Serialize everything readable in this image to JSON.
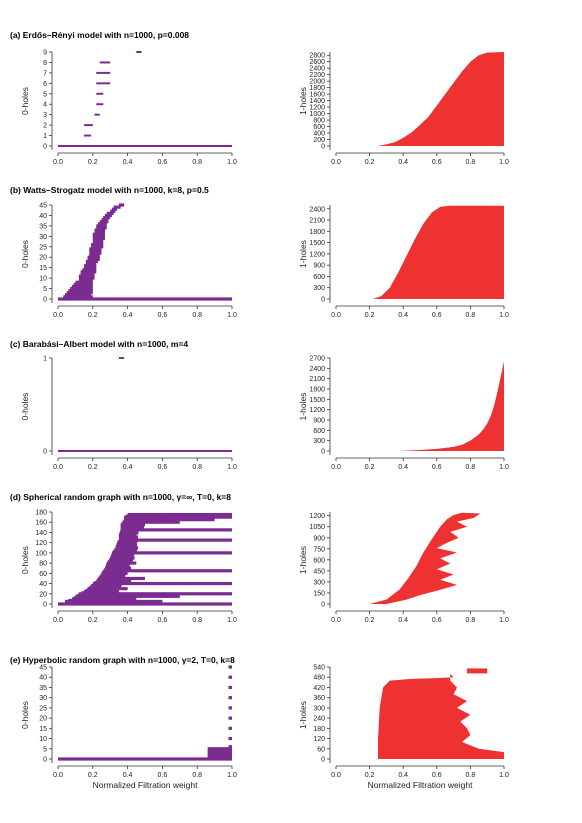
{
  "colors": {
    "zero_holes": "#7b2c91",
    "one_holes": "#ee3232"
  },
  "panels": [
    {
      "label": "(a)",
      "title": "Erdős–Rényi model with n=1000, p=0.008"
    },
    {
      "label": "(b)",
      "title": "Watts–Strogatz model with n=1000, k=8, p=0.5"
    },
    {
      "label": "(c)",
      "title": "Barabási–Albert model with n=1000, m=4"
    },
    {
      "label": "(d)",
      "title": "Spherical random graph with n=1000, γ=∞, T=0, k=8"
    },
    {
      "label": "(e)",
      "title": "Hyperbolic random graph with n=1000, γ=2, T=0, k=8"
    }
  ],
  "chart_data": [
    {
      "panel": "a",
      "type": "bar",
      "ylabel": "0-holes",
      "xlim": [
        0,
        1
      ],
      "ylim": [
        0,
        9
      ],
      "xticks": [
        "0.0",
        "0.2",
        "0.4",
        "0.6",
        "0.8",
        "1.0"
      ],
      "yticks": [
        "0",
        "1",
        "2",
        "3",
        "4",
        "5",
        "6",
        "7",
        "8",
        "9"
      ],
      "bars": [
        [
          0,
          0,
          1
        ],
        [
          1,
          0.15,
          0.19
        ],
        [
          2,
          0.15,
          0.2
        ],
        [
          3,
          0.21,
          0.24
        ],
        [
          4,
          0.22,
          0.26
        ],
        [
          5,
          0.22,
          0.26
        ],
        [
          6,
          0.22,
          0.3
        ],
        [
          7,
          0.22,
          0.3
        ],
        [
          8,
          0.24,
          0.3
        ],
        [
          9,
          0.45,
          0.48
        ]
      ]
    },
    {
      "panel": "a",
      "type": "area",
      "ylabel": "1-holes",
      "xlim": [
        0,
        1
      ],
      "ylim": [
        0,
        2900
      ],
      "xticks": [
        "0.0",
        "0.2",
        "0.4",
        "0.6",
        "0.8",
        "1.0"
      ],
      "yticks": [
        "0",
        "200",
        "400",
        "600",
        "800",
        "1000",
        "1200",
        "1400",
        "1600",
        "1800",
        "2000",
        "2200",
        "2400",
        "2600",
        "2800"
      ],
      "curve": [
        [
          0.25,
          0
        ],
        [
          0.3,
          50
        ],
        [
          0.35,
          120
        ],
        [
          0.4,
          250
        ],
        [
          0.45,
          420
        ],
        [
          0.5,
          650
        ],
        [
          0.55,
          900
        ],
        [
          0.6,
          1250
        ],
        [
          0.65,
          1600
        ],
        [
          0.7,
          1950
        ],
        [
          0.75,
          2300
        ],
        [
          0.8,
          2600
        ],
        [
          0.85,
          2800
        ],
        [
          0.9,
          2880
        ],
        [
          1.0,
          2900
        ]
      ]
    },
    {
      "panel": "b",
      "type": "bar",
      "ylabel": "0-holes",
      "xlim": [
        0,
        1
      ],
      "ylim": [
        0,
        45
      ],
      "xticks": [
        "0.0",
        "0.2",
        "0.4",
        "0.6",
        "0.8",
        "1.0"
      ],
      "yticks": [
        "0",
        "5",
        "10",
        "15",
        "20",
        "25",
        "30",
        "35",
        "40",
        "45"
      ],
      "bars": [
        [
          0,
          0,
          1
        ],
        [
          1,
          0.03,
          0.2
        ],
        [
          2,
          0.04,
          0.19
        ],
        [
          3,
          0.05,
          0.2
        ],
        [
          4,
          0.06,
          0.2
        ],
        [
          5,
          0.07,
          0.2
        ],
        [
          6,
          0.08,
          0.2
        ],
        [
          7,
          0.09,
          0.2
        ],
        [
          8,
          0.1,
          0.2
        ],
        [
          9,
          0.12,
          0.2
        ],
        [
          10,
          0.12,
          0.21
        ],
        [
          11,
          0.12,
          0.21
        ],
        [
          12,
          0.13,
          0.21
        ],
        [
          13,
          0.13,
          0.22
        ],
        [
          14,
          0.14,
          0.22
        ],
        [
          15,
          0.15,
          0.22
        ],
        [
          16,
          0.15,
          0.22
        ],
        [
          17,
          0.16,
          0.22
        ],
        [
          18,
          0.16,
          0.23
        ],
        [
          19,
          0.17,
          0.24
        ],
        [
          20,
          0.17,
          0.24
        ],
        [
          21,
          0.18,
          0.24
        ],
        [
          22,
          0.18,
          0.25
        ],
        [
          23,
          0.18,
          0.25
        ],
        [
          24,
          0.18,
          0.25
        ],
        [
          25,
          0.19,
          0.26
        ],
        [
          26,
          0.19,
          0.26
        ],
        [
          27,
          0.2,
          0.26
        ],
        [
          28,
          0.2,
          0.26
        ],
        [
          29,
          0.2,
          0.27
        ],
        [
          30,
          0.2,
          0.27
        ],
        [
          31,
          0.2,
          0.27
        ],
        [
          32,
          0.21,
          0.27
        ],
        [
          33,
          0.21,
          0.27
        ],
        [
          34,
          0.22,
          0.28
        ],
        [
          35,
          0.22,
          0.28
        ],
        [
          36,
          0.23,
          0.28
        ],
        [
          37,
          0.24,
          0.29
        ],
        [
          38,
          0.25,
          0.29
        ],
        [
          39,
          0.26,
          0.3
        ],
        [
          40,
          0.27,
          0.31
        ],
        [
          41,
          0.28,
          0.32
        ],
        [
          42,
          0.3,
          0.33
        ],
        [
          43,
          0.31,
          0.34
        ],
        [
          44,
          0.32,
          0.36
        ],
        [
          45,
          0.35,
          0.38
        ]
      ]
    },
    {
      "panel": "b",
      "type": "area",
      "ylabel": "1-holes",
      "xlim": [
        0,
        1
      ],
      "ylim": [
        0,
        2500
      ],
      "xticks": [
        "0.0",
        "0.2",
        "0.4",
        "0.6",
        "0.8",
        "1.0"
      ],
      "yticks": [
        "0",
        "300",
        "600",
        "900",
        "1200",
        "1500",
        "1800",
        "2100",
        "2400"
      ],
      "curve": [
        [
          0.22,
          0
        ],
        [
          0.27,
          80
        ],
        [
          0.32,
          300
        ],
        [
          0.37,
          700
        ],
        [
          0.42,
          1150
        ],
        [
          0.47,
          1600
        ],
        [
          0.52,
          2000
        ],
        [
          0.57,
          2300
        ],
        [
          0.62,
          2450
        ],
        [
          0.67,
          2480
        ],
        [
          1.0,
          2480
        ]
      ]
    },
    {
      "panel": "c",
      "type": "bar",
      "ylabel": "0-holes",
      "xlim": [
        0,
        1
      ],
      "ylim": [
        0,
        1
      ],
      "xticks": [
        "0.0",
        "0.2",
        "0.4",
        "0.6",
        "0.8",
        "1.0"
      ],
      "yticks": [
        "0",
        "1"
      ],
      "bars": [
        [
          0,
          0,
          1
        ],
        [
          1,
          0.35,
          0.38
        ]
      ]
    },
    {
      "panel": "c",
      "type": "area",
      "ylabel": "1-holes",
      "xlim": [
        0,
        1
      ],
      "ylim": [
        0,
        2700
      ],
      "xticks": [
        "0.0",
        "0.2",
        "0.4",
        "0.6",
        "0.8",
        "1.0"
      ],
      "yticks": [
        "0",
        "300",
        "600",
        "900",
        "1200",
        "1500",
        "1800",
        "2100",
        "2400",
        "2700"
      ],
      "curve": [
        [
          0.37,
          0
        ],
        [
          0.5,
          30
        ],
        [
          0.6,
          60
        ],
        [
          0.7,
          120
        ],
        [
          0.75,
          180
        ],
        [
          0.8,
          300
        ],
        [
          0.85,
          480
        ],
        [
          0.88,
          650
        ],
        [
          0.9,
          800
        ],
        [
          0.92,
          1000
        ],
        [
          0.94,
          1300
        ],
        [
          0.96,
          1700
        ],
        [
          0.98,
          2150
        ],
        [
          1.0,
          2600
        ]
      ]
    },
    {
      "panel": "d",
      "type": "bar",
      "ylabel": "0-holes",
      "xlim": [
        0,
        1
      ],
      "ylim": [
        0,
        180
      ],
      "xticks": [
        "0.0",
        "0.2",
        "0.4",
        "0.6",
        "0.8",
        "1.0"
      ],
      "yticks": [
        "0",
        "20",
        "40",
        "60",
        "80",
        "100",
        "120",
        "140",
        "160",
        "180"
      ],
      "bars": [
        [
          0,
          0,
          1
        ],
        [
          5,
          0.04,
          0.6
        ],
        [
          10,
          0.08,
          0.45
        ],
        [
          15,
          0.1,
          0.7
        ],
        [
          20,
          0.12,
          1
        ],
        [
          25,
          0.15,
          0.35
        ],
        [
          30,
          0.17,
          0.4
        ],
        [
          40,
          0.2,
          1
        ],
        [
          45,
          0.22,
          0.42
        ],
        [
          50,
          0.23,
          0.5
        ],
        [
          60,
          0.25,
          0.4
        ],
        [
          65,
          0.26,
          1
        ],
        [
          70,
          0.27,
          0.42
        ],
        [
          80,
          0.28,
          0.45
        ],
        [
          90,
          0.3,
          0.44
        ],
        [
          100,
          0.31,
          1
        ],
        [
          110,
          0.33,
          0.46
        ],
        [
          120,
          0.34,
          0.45
        ],
        [
          125,
          0.35,
          1
        ],
        [
          135,
          0.35,
          0.45
        ],
        [
          145,
          0.36,
          1
        ],
        [
          155,
          0.36,
          0.5
        ],
        [
          160,
          0.37,
          0.7
        ],
        [
          165,
          0.38,
          0.9
        ],
        [
          170,
          0.38,
          1
        ],
        [
          175,
          0.4,
          1
        ]
      ]
    },
    {
      "panel": "d",
      "type": "area",
      "ylabel": "1-holes",
      "xlim": [
        0,
        1
      ],
      "ylim": [
        0,
        1250
      ],
      "xticks": [
        "0.0",
        "0.2",
        "0.4",
        "0.6",
        "0.8",
        "1.0"
      ],
      "yticks": [
        "0",
        "150",
        "300",
        "450",
        "600",
        "750",
        "900",
        "1050",
        "1200"
      ],
      "curve": [
        [
          0.2,
          0
        ],
        [
          0.3,
          60
        ],
        [
          0.38,
          200
        ],
        [
          0.43,
          350
        ],
        [
          0.48,
          520
        ],
        [
          0.52,
          700
        ],
        [
          0.57,
          880
        ],
        [
          0.62,
          1050
        ],
        [
          0.66,
          1150
        ],
        [
          0.7,
          1210
        ],
        [
          0.75,
          1240
        ]
      ],
      "right_edge": [
        [
          0.3,
          0
        ],
        [
          0.42,
          60
        ],
        [
          0.5,
          120
        ],
        [
          0.6,
          180
        ],
        [
          0.72,
          260
        ],
        [
          0.62,
          330
        ],
        [
          0.7,
          400
        ],
        [
          0.6,
          470
        ],
        [
          0.68,
          550
        ],
        [
          0.62,
          620
        ],
        [
          0.72,
          700
        ],
        [
          0.6,
          760
        ],
        [
          0.66,
          830
        ],
        [
          0.73,
          900
        ],
        [
          0.68,
          980
        ],
        [
          0.78,
          1050
        ],
        [
          0.72,
          1120
        ],
        [
          0.82,
          1170
        ],
        [
          0.86,
          1230
        ]
      ]
    },
    {
      "panel": "e",
      "type": "bar",
      "ylabel": "0-holes",
      "xlim": [
        0,
        1
      ],
      "ylim": [
        0,
        45
      ],
      "xticks": [
        "0.0",
        "0.2",
        "0.4",
        "0.6",
        "0.8",
        "1.0"
      ],
      "yticks": [
        "0",
        "5",
        "10",
        "15",
        "20",
        "25",
        "30",
        "35",
        "40",
        "45"
      ],
      "bars": [
        [
          0,
          0,
          1
        ],
        [
          1,
          0.86,
          1
        ],
        [
          2,
          0.86,
          1
        ],
        [
          3,
          0.86,
          1
        ],
        [
          4,
          0.86,
          1
        ],
        [
          5,
          0.86,
          1
        ],
        [
          6,
          0.98,
          1
        ],
        [
          10,
          0.98,
          1
        ],
        [
          15,
          0.98,
          1
        ],
        [
          20,
          0.98,
          1
        ],
        [
          25,
          0.98,
          1
        ],
        [
          30,
          0.98,
          1
        ],
        [
          35,
          0.98,
          1
        ],
        [
          40,
          0.98,
          1
        ],
        [
          45,
          0.98,
          1
        ]
      ]
    },
    {
      "panel": "e",
      "type": "area",
      "ylabel": "1-holes",
      "xlim": [
        0,
        1
      ],
      "ylim": [
        0,
        540
      ],
      "xticks": [
        "0.0",
        "0.2",
        "0.4",
        "0.6",
        "0.8",
        "1.0"
      ],
      "yticks": [
        "0",
        "60",
        "120",
        "180",
        "240",
        "300",
        "360",
        "420",
        "480",
        "540"
      ],
      "curve": [
        [
          0.25,
          0
        ],
        [
          0.25,
          120
        ],
        [
          0.26,
          300
        ],
        [
          0.28,
          420
        ],
        [
          0.32,
          460
        ],
        [
          0.45,
          470
        ],
        [
          0.6,
          475
        ],
        [
          0.7,
          480
        ]
      ],
      "right_edge": [
        [
          1.0,
          0
        ],
        [
          1.0,
          40
        ],
        [
          0.85,
          60
        ],
        [
          0.75,
          100
        ],
        [
          0.8,
          140
        ],
        [
          0.78,
          180
        ],
        [
          0.74,
          220
        ],
        [
          0.8,
          260
        ],
        [
          0.72,
          300
        ],
        [
          0.78,
          340
        ],
        [
          0.7,
          380
        ],
        [
          0.72,
          420
        ],
        [
          0.68,
          460
        ],
        [
          0.68,
          500
        ]
      ]
    }
  ],
  "xlabel": "Normalized Filtration weight"
}
